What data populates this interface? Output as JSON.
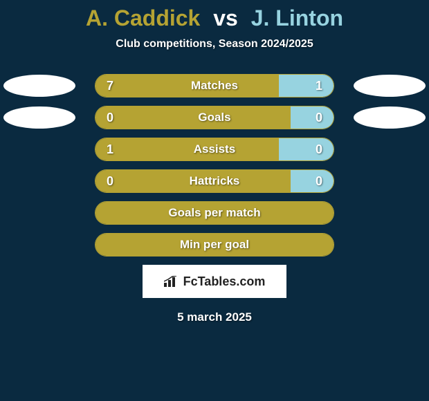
{
  "title": {
    "playerA": "A. Caddick",
    "vs": "vs",
    "playerB": "J. Linton"
  },
  "subtitle": "Club competitions, Season 2024/2025",
  "colors": {
    "colorA": "#b5a333",
    "colorB": "#97d3e0",
    "background": "#0a2a40",
    "label": "#ffffff"
  },
  "stats": [
    {
      "label": "Matches",
      "valA": "7",
      "valB": "1",
      "pctA": 77,
      "pctB": 23,
      "showEllipses": true
    },
    {
      "label": "Goals",
      "valA": "0",
      "valB": "0",
      "pctA": 100,
      "pctB": 18,
      "showEllipses": true
    },
    {
      "label": "Assists",
      "valA": "1",
      "valB": "0",
      "pctA": 77,
      "pctB": 23,
      "showEllipses": false
    },
    {
      "label": "Hattricks",
      "valA": "0",
      "valB": "0",
      "pctA": 100,
      "pctB": 18,
      "showEllipses": false
    },
    {
      "label": "Goals per match",
      "valA": "",
      "valB": "",
      "pctA": 100,
      "pctB": 0,
      "showEllipses": false
    },
    {
      "label": "Min per goal",
      "valA": "",
      "valB": "",
      "pctA": 100,
      "pctB": 0,
      "showEllipses": false
    }
  ],
  "logo": "FcTables.com",
  "date": "5 march 2025"
}
